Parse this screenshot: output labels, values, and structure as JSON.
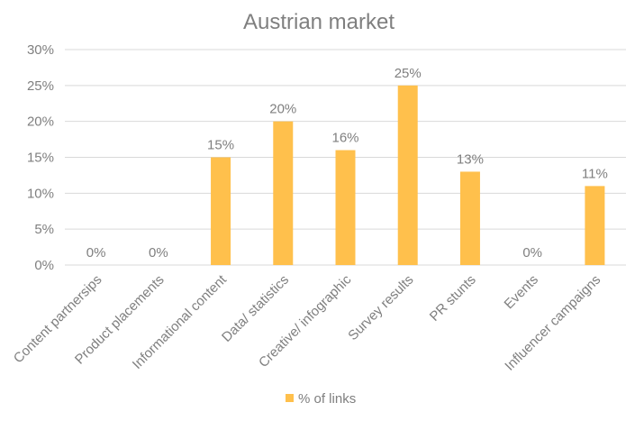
{
  "chart_data": {
    "type": "bar",
    "title": "Austrian market",
    "categories": [
      "Content partnersips",
      "Product placements",
      "Informational content",
      "Data/ statistics",
      "Creative/ infographic",
      "Survey results",
      "PR stunts",
      "Events",
      "Influencer campaigns"
    ],
    "series": [
      {
        "name": "% of links",
        "values": [
          0,
          0,
          15,
          20,
          16,
          25,
          13,
          0,
          11
        ]
      }
    ],
    "data_labels": [
      "0%",
      "0%",
      "15%",
      "20%",
      "16%",
      "25%",
      "13%",
      "0%",
      "11%"
    ],
    "y_ticks": [
      "0%",
      "5%",
      "10%",
      "15%",
      "20%",
      "25%",
      "30%"
    ],
    "ylim": [
      0,
      30
    ],
    "grid": true,
    "legend_position": "bottom",
    "colors": {
      "bar": "#ffc04c",
      "grid": "#d9d9d9",
      "text": "#7f7f7f"
    }
  }
}
